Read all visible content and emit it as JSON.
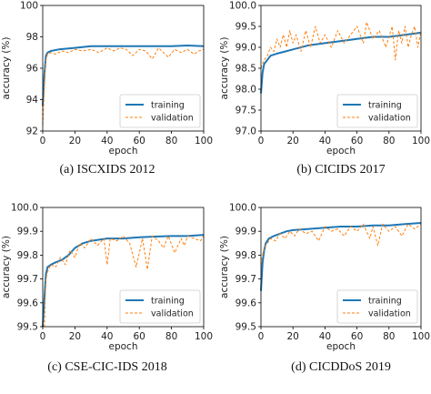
{
  "colors": {
    "training": "#1f77b4",
    "validation": "#ff7f0e"
  },
  "chart_data": [
    {
      "type": "line",
      "caption": "(a) ISCXIDS 2012",
      "xlabel": "epoch",
      "ylabel": "accuracy (%)",
      "xlim": [
        0,
        100
      ],
      "ylim": [
        92,
        100
      ],
      "xticks": [
        "0",
        "20",
        "40",
        "60",
        "80",
        "100"
      ],
      "yticks": [
        "92",
        "94",
        "96",
        "98",
        "100"
      ],
      "legend": {
        "position": "lower-right",
        "entries": [
          "training",
          "validation"
        ]
      },
      "series": [
        {
          "name": "training",
          "style": "solid",
          "x": [
            0,
            1,
            2,
            3,
            5,
            10,
            20,
            30,
            40,
            50,
            60,
            70,
            80,
            90,
            100
          ],
          "y": [
            93.6,
            95.6,
            96.8,
            97.0,
            97.1,
            97.2,
            97.3,
            97.4,
            97.4,
            97.4,
            97.4,
            97.4,
            97.4,
            97.45,
            97.4
          ]
        },
        {
          "name": "validation",
          "style": "dashed",
          "x": [
            0,
            1,
            2,
            3,
            5,
            8,
            12,
            16,
            20,
            25,
            30,
            35,
            40,
            44,
            48,
            52,
            56,
            60,
            64,
            68,
            72,
            75,
            78,
            82,
            86,
            90,
            94,
            97,
            100
          ],
          "y": [
            92.4,
            94.8,
            96.5,
            96.9,
            97.0,
            96.9,
            97.1,
            97.0,
            97.2,
            97.1,
            97.2,
            97.0,
            97.3,
            97.1,
            97.3,
            97.2,
            96.8,
            97.2,
            97.1,
            96.6,
            97.3,
            97.0,
            96.7,
            97.2,
            97.0,
            97.2,
            96.9,
            97.1,
            97.2
          ]
        }
      ]
    },
    {
      "type": "line",
      "caption": "(b) CICIDS 2017",
      "xlabel": "epoch",
      "ylabel": "accuracy (%)",
      "xlim": [
        0,
        100
      ],
      "ylim": [
        97.0,
        100.0
      ],
      "xticks": [
        "0",
        "20",
        "40",
        "60",
        "80",
        "100"
      ],
      "yticks": [
        "97.0",
        "97.5",
        "98.0",
        "98.5",
        "99.0",
        "99.5",
        "100.0"
      ],
      "legend": {
        "position": "lower-right",
        "entries": [
          "training",
          "validation"
        ]
      },
      "series": [
        {
          "name": "training",
          "style": "solid",
          "x": [
            0,
            1,
            2,
            4,
            6,
            10,
            15,
            20,
            30,
            40,
            50,
            60,
            70,
            80,
            90,
            100
          ],
          "y": [
            97.9,
            98.4,
            98.6,
            98.7,
            98.8,
            98.85,
            98.9,
            98.95,
            99.05,
            99.1,
            99.15,
            99.2,
            99.25,
            99.25,
            99.3,
            99.35
          ]
        },
        {
          "name": "validation",
          "style": "dashed",
          "x": [
            0,
            2,
            4,
            6,
            8,
            10,
            12,
            14,
            16,
            18,
            20,
            22,
            25,
            28,
            31,
            34,
            37,
            40,
            44,
            48,
            52,
            56,
            60,
            64,
            66,
            70,
            74,
            78,
            82,
            84,
            86,
            88,
            90,
            92,
            94,
            96,
            98,
            100
          ],
          "y": [
            98.5,
            98.7,
            98.8,
            99.0,
            98.9,
            99.2,
            99.0,
            99.3,
            99.0,
            99.4,
            99.1,
            99.3,
            98.9,
            99.4,
            99.0,
            99.5,
            99.1,
            99.3,
            99.0,
            99.4,
            99.1,
            99.3,
            99.5,
            99.1,
            99.6,
            99.2,
            99.4,
            99.0,
            99.5,
            98.7,
            99.4,
            99.1,
            99.5,
            99.0,
            99.3,
            99.5,
            99.0,
            99.4
          ]
        }
      ]
    },
    {
      "type": "line",
      "caption": "(c) CSE-CIC-IDS 2018",
      "xlabel": "epoch",
      "ylabel": "accuracy (%)",
      "xlim": [
        0,
        100
      ],
      "ylim": [
        99.5,
        100.0
      ],
      "xticks": [
        "0",
        "20",
        "40",
        "60",
        "80",
        "100"
      ],
      "yticks": [
        "99.5",
        "99.6",
        "99.7",
        "99.8",
        "99.9",
        "100.0"
      ],
      "legend": {
        "position": "lower-right",
        "entries": [
          "training",
          "validation"
        ]
      },
      "series": [
        {
          "name": "training",
          "style": "solid",
          "x": [
            0,
            1,
            2,
            3,
            5,
            8,
            12,
            16,
            20,
            25,
            30,
            40,
            50,
            60,
            70,
            80,
            90,
            100
          ],
          "y": [
            99.5,
            99.62,
            99.72,
            99.75,
            99.76,
            99.77,
            99.78,
            99.8,
            99.83,
            99.85,
            99.86,
            99.87,
            99.87,
            99.875,
            99.878,
            99.88,
            99.88,
            99.885
          ]
        },
        {
          "name": "validation",
          "style": "dashed",
          "x": [
            0,
            1,
            2,
            3,
            5,
            8,
            11,
            14,
            17,
            20,
            23,
            26,
            30,
            34,
            38,
            40,
            42,
            46,
            50,
            54,
            58,
            62,
            65,
            68,
            72,
            75,
            78,
            82,
            86,
            88,
            90,
            94,
            98,
            100
          ],
          "y": [
            99.52,
            99.5,
            99.7,
            99.73,
            99.76,
            99.75,
            99.79,
            99.76,
            99.82,
            99.79,
            99.85,
            99.83,
            99.87,
            99.84,
            99.87,
            99.76,
            99.87,
            99.86,
            99.88,
            99.85,
            99.75,
            99.87,
            99.74,
            99.88,
            99.86,
            99.83,
            99.88,
            99.81,
            99.87,
            99.84,
            99.88,
            99.87,
            99.86,
            99.88
          ]
        }
      ]
    },
    {
      "type": "line",
      "caption": "(d) CICDDoS 2019",
      "xlabel": "epoch",
      "ylabel": "accuracy (%)",
      "xlim": [
        0,
        100
      ],
      "ylim": [
        99.5,
        100.0
      ],
      "xticks": [
        "0",
        "20",
        "40",
        "60",
        "80",
        "100"
      ],
      "yticks": [
        "99.5",
        "99.6",
        "99.7",
        "99.8",
        "99.9",
        "100.0"
      ],
      "legend": {
        "position": "lower-right",
        "entries": [
          "training",
          "validation"
        ]
      },
      "series": [
        {
          "name": "training",
          "style": "solid",
          "x": [
            0,
            1,
            2,
            3,
            5,
            8,
            12,
            16,
            20,
            30,
            40,
            50,
            60,
            70,
            80,
            90,
            100
          ],
          "y": [
            99.65,
            99.77,
            99.82,
            99.85,
            99.87,
            99.88,
            99.89,
            99.9,
            99.905,
            99.91,
            99.915,
            99.92,
            99.92,
            99.925,
            99.925,
            99.93,
            99.935
          ]
        },
        {
          "name": "validation",
          "style": "dashed",
          "x": [
            0,
            1,
            2,
            4,
            6,
            9,
            12,
            15,
            18,
            21,
            24,
            28,
            32,
            36,
            40,
            44,
            48,
            52,
            56,
            60,
            64,
            68,
            70,
            73,
            76,
            80,
            84,
            88,
            92,
            96,
            100
          ],
          "y": [
            99.76,
            99.8,
            99.83,
            99.85,
            99.87,
            99.86,
            99.89,
            99.87,
            99.9,
            99.88,
            99.91,
            99.89,
            99.9,
            99.86,
            99.92,
            99.9,
            99.91,
            99.88,
            99.92,
            99.9,
            99.93,
            99.87,
            99.92,
            99.84,
            99.93,
            99.9,
            99.92,
            99.88,
            99.93,
            99.91,
            99.93
          ]
        }
      ]
    }
  ]
}
